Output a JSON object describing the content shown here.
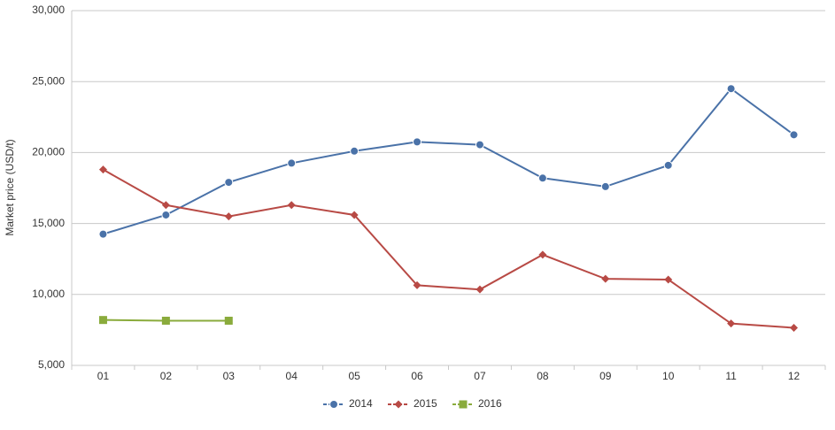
{
  "chart_data": {
    "type": "line",
    "y_label": "Market price (USD/t)",
    "categories": [
      "01",
      "02",
      "03",
      "04",
      "05",
      "06",
      "07",
      "08",
      "09",
      "10",
      "11",
      "12"
    ],
    "series": [
      {
        "name": "2014",
        "color": "#4a72a8",
        "marker": "circle",
        "values": [
          14250,
          15600,
          17900,
          19250,
          20100,
          20750,
          20550,
          18200,
          17600,
          19100,
          24500,
          21250
        ]
      },
      {
        "name": "2015",
        "color": "#b84a45",
        "marker": "diamond",
        "values": [
          18800,
          16300,
          15500,
          16300,
          15600,
          10650,
          10350,
          12800,
          11100,
          11050,
          7950,
          7650
        ]
      },
      {
        "name": "2016",
        "color": "#8aab3c",
        "marker": "square",
        "values": [
          8200,
          8150,
          8150,
          null,
          null,
          null,
          null,
          null,
          null,
          null,
          null,
          null
        ]
      }
    ],
    "ylim": [
      5000,
      30000
    ],
    "yticks": [
      {
        "value": 5000,
        "label": "5,000"
      },
      {
        "value": 10000,
        "label": "10,000"
      },
      {
        "value": 15000,
        "label": "15,000"
      },
      {
        "value": 20000,
        "label": "20,000"
      },
      {
        "value": 25000,
        "label": "25,000"
      },
      {
        "value": 30000,
        "label": "30,000"
      }
    ],
    "grid": true,
    "legend": "bottom"
  }
}
